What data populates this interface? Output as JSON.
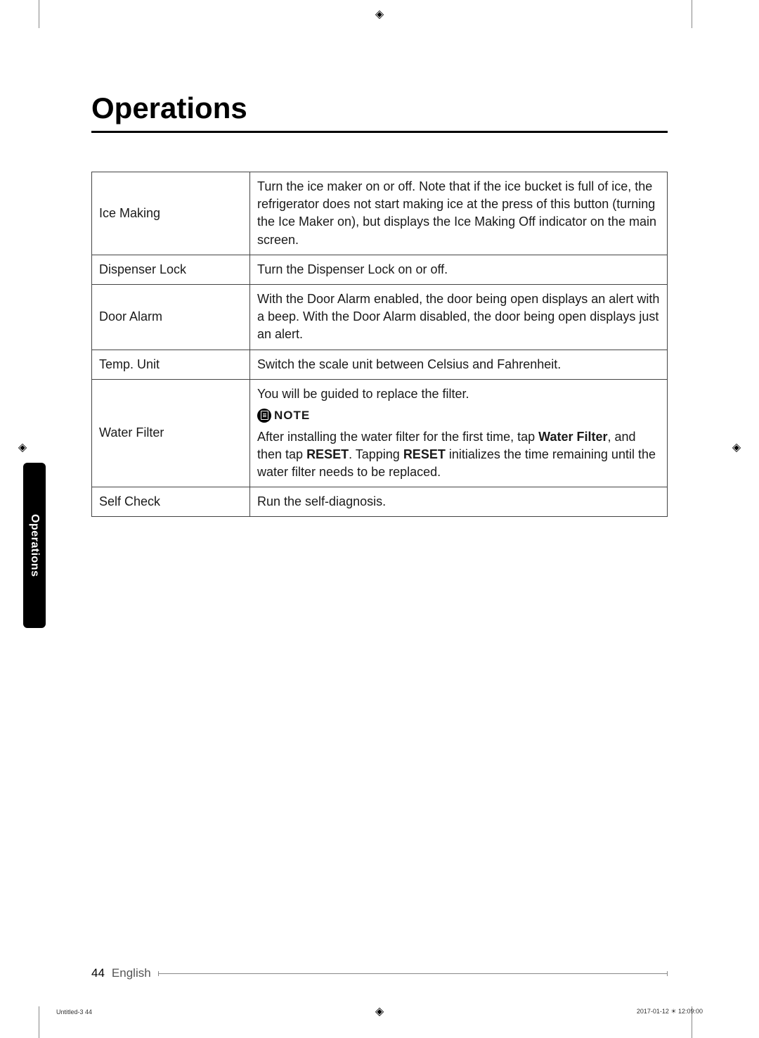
{
  "title": "Operations",
  "sideTab": "Operations",
  "footer": {
    "pageNum": "44",
    "language": "English"
  },
  "printInfo": {
    "left": "Untitled-3   44",
    "right": "2017-01-12   ☀ 12:09:00"
  },
  "table": {
    "rows": [
      {
        "label": "Ice Making",
        "desc": "Turn the ice maker on or off. Note that if the ice bucket is full of ice, the refrigerator does not start making ice at the press of this button (turning the Ice Maker on), but displays the Ice Making Off indicator on the main screen."
      },
      {
        "label": "Dispenser Lock",
        "desc": "Turn the Dispenser Lock on or off."
      },
      {
        "label": "Door Alarm",
        "desc": "With the Door Alarm enabled, the door being open displays an alert with a beep. With the Door Alarm disabled, the door being open displays just an alert."
      },
      {
        "label": "Temp. Unit",
        "desc": "Switch the scale unit between Celsius and Fahrenheit."
      },
      {
        "label": "Water Filter",
        "intro": "You will be guided to replace the filter.",
        "noteLabel": "NOTE",
        "noteParts": {
          "p1": "After installing the water filter for the first time, tap ",
          "b1": "Water Filter",
          "p2": ", and then tap ",
          "b2": "RESET",
          "p3": ". Tapping ",
          "b3": "RESET",
          "p4": " initializes the time remaining until the water filter needs to be replaced."
        }
      },
      {
        "label": "Self Check",
        "desc": "Run the self-diagnosis."
      }
    ]
  }
}
